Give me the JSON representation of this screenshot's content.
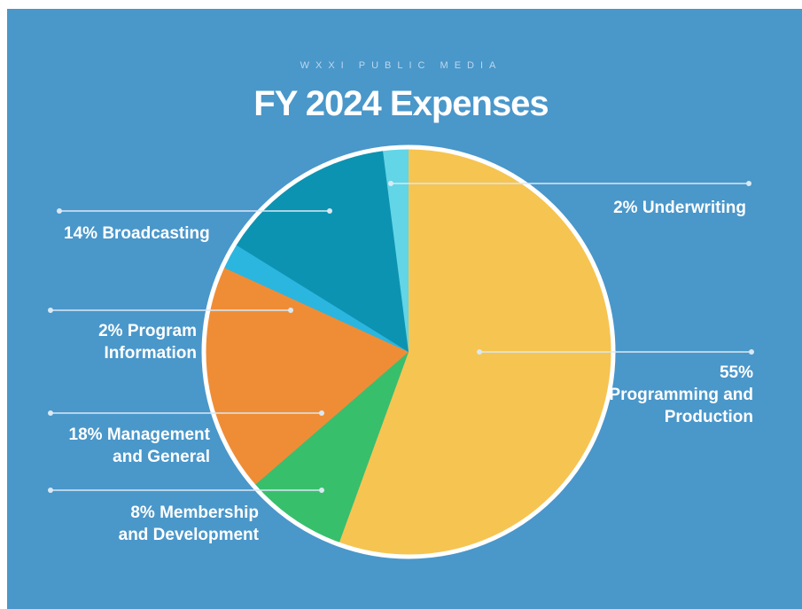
{
  "chart_data": {
    "type": "pie",
    "subtitle": "WXXI PUBLIC MEDIA",
    "title": "FY 2024 Expenses",
    "categories": [
      "Programming and Production",
      "Membership and Development",
      "Management and General",
      "Program Information",
      "Broadcasting",
      "Underwriting"
    ],
    "values": [
      55,
      8,
      18,
      2,
      14,
      2
    ],
    "value_labels": [
      "55%",
      "8%",
      "18%",
      "2%",
      "14%",
      "2%"
    ],
    "colors": [
      "#f6c451",
      "#38bf6c",
      "#ef8d37",
      "#2bb6e0",
      "#0c93b1",
      "#62d5e6"
    ]
  }
}
